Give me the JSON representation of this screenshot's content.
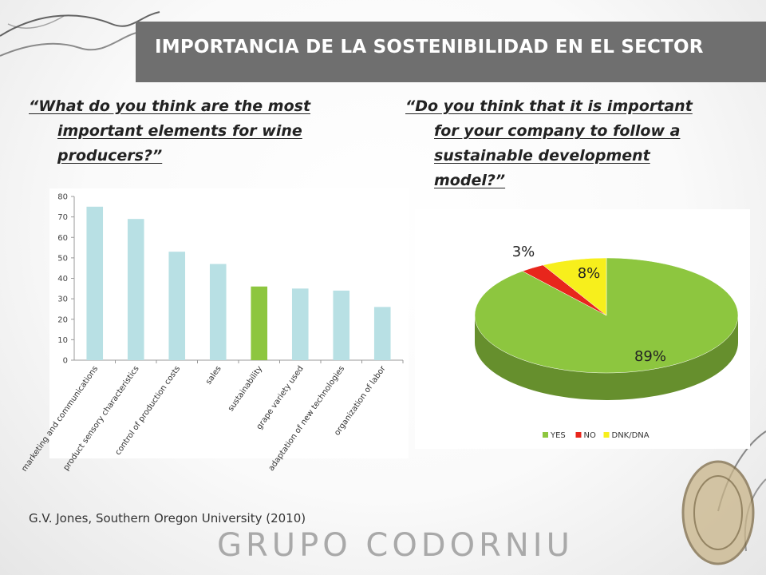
{
  "header": {
    "title": "IMPORTANCIA DE LA SOSTENIBILIDAD EN EL SECTOR"
  },
  "questions": {
    "left": [
      "“What do you think are the most",
      "important elements for wine",
      "producers?”"
    ],
    "right": [
      "“Do you think that it is important",
      "for your company to follow a",
      "sustainable development",
      "model?”"
    ]
  },
  "citation": "G.V. Jones, Southern Oregon University (2010)",
  "brand": "GRUPO CODORNIU",
  "colors": {
    "bar": "#b8e0e4",
    "bar_highlight": "#8dc63f",
    "yes": "#8dc63f",
    "no": "#e8261c",
    "dnk": "#f7ef1c"
  },
  "chart_data": [
    {
      "type": "bar",
      "categories": [
        "marketing and communications",
        "product sensory characteristics",
        "control of production costs",
        "sales",
        "sustainability",
        "grape variety used",
        "adaptation of new technologies",
        "organization of labor"
      ],
      "values": [
        75,
        69,
        53,
        47,
        36,
        35,
        34,
        26
      ],
      "highlight": "sustainability",
      "ylim": [
        0,
        80
      ],
      "yticks": [
        "0",
        "10",
        "20",
        "30",
        "40",
        "50",
        "60",
        "70",
        "80"
      ],
      "title": "",
      "xlabel": "",
      "ylabel": "",
      "grid": false
    },
    {
      "type": "pie",
      "style": "3d",
      "slices": [
        {
          "label": "YES",
          "value": 89,
          "display": "89%"
        },
        {
          "label": "NO",
          "value": 3,
          "display": "3%"
        },
        {
          "label": "DNK/DNA",
          "value": 8,
          "display": "8%"
        }
      ],
      "legend": [
        "YES",
        "NO",
        "DNK/DNA"
      ],
      "legend_position": "bottom"
    }
  ]
}
